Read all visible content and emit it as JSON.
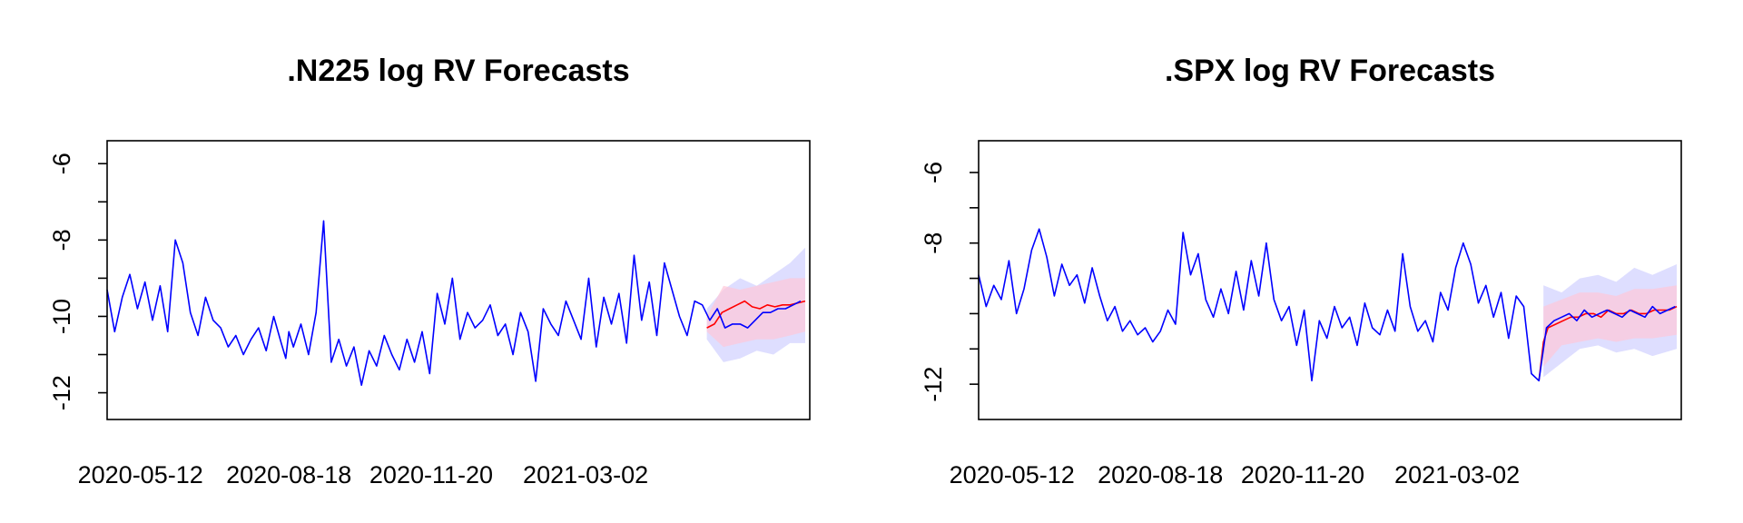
{
  "colors": {
    "actual": "#0000ff",
    "forecast": "#ff0000",
    "band_actual": "#c8c8ff",
    "band_forecast": "#ffc8d8",
    "axis": "#000000"
  },
  "chart_data": [
    {
      "type": "line",
      "title": ".N225 log RV Forecasts",
      "xlabel": "",
      "ylabel": "",
      "xlim": [
        "2020-04-20",
        "2021-07-28"
      ],
      "ylim": [
        -12.7,
        -5.4
      ],
      "yticks": [
        -12,
        -11,
        -10,
        -9,
        -8,
        -7,
        -6
      ],
      "ytick_labels": [
        "-12",
        "",
        "-10",
        "",
        "-8",
        "",
        "-6"
      ],
      "xtick_labels": [
        "2020-05-12",
        "2020-08-18",
        "2020-11-20",
        "2021-03-02"
      ],
      "xtick_dates": [
        "2020-05-12",
        "2020-08-18",
        "2020-11-20",
        "2021-03-02"
      ],
      "grid": false,
      "series": [
        {
          "role": "actual",
          "x": [
            "2020-04-20",
            "2020-04-25",
            "2020-04-30",
            "2020-05-05",
            "2020-05-10",
            "2020-05-15",
            "2020-05-20",
            "2020-05-25",
            "2020-05-30",
            "2020-06-04",
            "2020-06-09",
            "2020-06-14",
            "2020-06-19",
            "2020-06-24",
            "2020-06-29",
            "2020-07-04",
            "2020-07-09",
            "2020-07-14",
            "2020-07-19",
            "2020-07-24",
            "2020-07-29",
            "2020-08-03",
            "2020-08-08",
            "2020-08-13",
            "2020-08-16",
            "2020-08-18",
            "2020-08-21",
            "2020-08-26",
            "2020-08-31",
            "2020-09-05",
            "2020-09-10",
            "2020-09-15",
            "2020-09-20",
            "2020-09-25",
            "2020-09-30",
            "2020-10-05",
            "2020-10-10",
            "2020-10-15",
            "2020-10-20",
            "2020-10-25",
            "2020-10-30",
            "2020-11-04",
            "2020-11-09",
            "2020-11-14",
            "2020-11-19",
            "2020-11-24",
            "2020-11-29",
            "2020-12-04",
            "2020-12-09",
            "2020-12-14",
            "2020-12-19",
            "2020-12-24",
            "2020-12-29",
            "2021-01-03",
            "2021-01-08",
            "2021-01-13",
            "2021-01-18",
            "2021-01-23",
            "2021-01-28",
            "2021-02-02",
            "2021-02-07",
            "2021-02-12",
            "2021-02-17",
            "2021-02-22",
            "2021-02-27",
            "2021-03-04",
            "2021-03-09",
            "2021-03-14",
            "2021-03-19",
            "2021-03-24",
            "2021-03-29",
            "2021-04-03",
            "2021-04-08",
            "2021-04-13",
            "2021-04-18",
            "2021-04-23",
            "2021-04-28",
            "2021-05-03",
            "2021-05-08",
            "2021-05-13",
            "2021-05-18",
            "2021-05-23",
            "2021-05-28",
            "2021-06-02",
            "2021-06-07",
            "2021-06-12",
            "2021-06-17",
            "2021-06-22",
            "2021-06-27",
            "2021-07-02",
            "2021-07-07",
            "2021-07-12",
            "2021-07-17",
            "2021-07-22"
          ],
          "values": [
            -9.3,
            -10.4,
            -9.5,
            -8.9,
            -9.8,
            -9.1,
            -10.1,
            -9.2,
            -10.4,
            -8.0,
            -8.6,
            -9.9,
            -10.5,
            -9.5,
            -10.1,
            -10.3,
            -10.8,
            -10.5,
            -11.0,
            -10.6,
            -10.3,
            -10.9,
            -10.0,
            -10.7,
            -11.1,
            -10.4,
            -10.8,
            -10.2,
            -11.0,
            -9.9,
            -7.5,
            -11.2,
            -10.6,
            -11.3,
            -10.8,
            -11.8,
            -10.9,
            -11.3,
            -10.5,
            -11.0,
            -11.4,
            -10.6,
            -11.2,
            -10.4,
            -11.5,
            -9.4,
            -10.2,
            -9.0,
            -10.6,
            -9.9,
            -10.3,
            -10.1,
            -9.7,
            -10.5,
            -10.2,
            -11.0,
            -9.9,
            -10.4,
            -11.7,
            -9.8,
            -10.2,
            -10.5,
            -9.6,
            -10.1,
            -10.6,
            -9.0,
            -10.8,
            -9.5,
            -10.2,
            -9.4,
            -10.7,
            -8.4,
            -10.1,
            -9.1,
            -10.5,
            -8.6,
            -9.3,
            -10.0,
            -10.5,
            -9.6,
            -9.7,
            -10.1,
            -9.8,
            -10.3,
            -10.2,
            -10.2,
            -10.3,
            -10.1,
            -9.9,
            -9.9,
            -9.8,
            -9.8,
            -9.7,
            -9.6
          ]
        },
        {
          "role": "forecast",
          "x": [
            "2021-05-21",
            "2021-05-26",
            "2021-05-31",
            "2021-06-05",
            "2021-06-10",
            "2021-06-15",
            "2021-06-20",
            "2021-06-25",
            "2021-06-30",
            "2021-07-05",
            "2021-07-10",
            "2021-07-15",
            "2021-07-20",
            "2021-07-25"
          ],
          "values": [
            -10.3,
            -10.2,
            -9.9,
            -9.8,
            -9.7,
            -9.6,
            -9.75,
            -9.8,
            -9.7,
            -9.75,
            -9.7,
            -9.7,
            -9.65,
            -9.6
          ]
        }
      ],
      "bands": [
        {
          "role": "actual",
          "x": [
            "2021-05-21",
            "2021-06-01",
            "2021-06-12",
            "2021-06-23",
            "2021-07-04",
            "2021-07-15",
            "2021-07-25"
          ],
          "lower": [
            -10.6,
            -11.2,
            -11.1,
            -10.9,
            -11.0,
            -10.7,
            -10.7
          ],
          "upper": [
            -9.8,
            -9.3,
            -9.0,
            -9.2,
            -8.9,
            -8.6,
            -8.2
          ]
        },
        {
          "role": "forecast",
          "x": [
            "2021-05-21",
            "2021-06-01",
            "2021-06-12",
            "2021-06-23",
            "2021-07-04",
            "2021-07-15",
            "2021-07-25"
          ],
          "lower": [
            -10.4,
            -10.8,
            -10.7,
            -10.6,
            -10.6,
            -10.5,
            -10.4
          ],
          "upper": [
            -10.0,
            -9.2,
            -9.3,
            -9.2,
            -9.1,
            -9.0,
            -9.0
          ]
        }
      ]
    },
    {
      "type": "line",
      "title": ".SPX log RV Forecasts",
      "xlabel": "",
      "ylabel": "",
      "xlim": [
        "2020-04-20",
        "2021-07-28"
      ],
      "ylim": [
        -13.0,
        -5.1
      ],
      "yticks": [
        -12,
        -11,
        -10,
        -9,
        -8,
        -7,
        -6
      ],
      "ytick_labels": [
        "-12",
        "",
        "",
        "",
        "-8",
        "",
        "-6"
      ],
      "xtick_labels": [
        "2020-05-12",
        "2020-08-18",
        "2020-11-20",
        "2021-03-02"
      ],
      "xtick_dates": [
        "2020-05-12",
        "2020-08-18",
        "2020-11-20",
        "2021-03-02"
      ],
      "grid": false,
      "series": [
        {
          "role": "actual",
          "x": [
            "2020-04-20",
            "2020-04-25",
            "2020-04-30",
            "2020-05-05",
            "2020-05-10",
            "2020-05-15",
            "2020-05-20",
            "2020-05-25",
            "2020-05-30",
            "2020-06-04",
            "2020-06-09",
            "2020-06-14",
            "2020-06-19",
            "2020-06-24",
            "2020-06-29",
            "2020-07-04",
            "2020-07-09",
            "2020-07-14",
            "2020-07-19",
            "2020-07-24",
            "2020-07-29",
            "2020-08-03",
            "2020-08-08",
            "2020-08-13",
            "2020-08-18",
            "2020-08-23",
            "2020-08-28",
            "2020-09-02",
            "2020-09-07",
            "2020-09-12",
            "2020-09-17",
            "2020-09-22",
            "2020-09-27",
            "2020-10-02",
            "2020-10-07",
            "2020-10-12",
            "2020-10-17",
            "2020-10-22",
            "2020-10-27",
            "2020-11-01",
            "2020-11-06",
            "2020-11-11",
            "2020-11-16",
            "2020-11-21",
            "2020-11-26",
            "2020-12-01",
            "2020-12-06",
            "2020-12-11",
            "2020-12-16",
            "2020-12-21",
            "2020-12-26",
            "2020-12-31",
            "2021-01-05",
            "2021-01-10",
            "2021-01-15",
            "2021-01-20",
            "2021-01-25",
            "2021-01-30",
            "2021-02-04",
            "2021-02-09",
            "2021-02-14",
            "2021-02-19",
            "2021-02-24",
            "2021-03-01",
            "2021-03-06",
            "2021-03-11",
            "2021-03-16",
            "2021-03-21",
            "2021-03-26",
            "2021-03-31",
            "2021-04-05",
            "2021-04-10",
            "2021-04-15",
            "2021-04-20",
            "2021-04-25",
            "2021-04-30",
            "2021-05-05",
            "2021-05-10",
            "2021-05-15",
            "2021-05-20",
            "2021-05-25",
            "2021-05-30",
            "2021-06-04",
            "2021-06-09",
            "2021-06-14",
            "2021-06-19",
            "2021-06-24",
            "2021-06-29",
            "2021-07-04",
            "2021-07-09",
            "2021-07-14",
            "2021-07-19",
            "2021-07-24"
          ],
          "values": [
            -8.9,
            -9.8,
            -9.2,
            -9.6,
            -8.5,
            -10.0,
            -9.3,
            -8.2,
            -7.6,
            -8.4,
            -9.5,
            -8.6,
            -9.2,
            -8.9,
            -9.7,
            -8.7,
            -9.5,
            -10.2,
            -9.8,
            -10.5,
            -10.2,
            -10.6,
            -10.4,
            -10.8,
            -10.5,
            -9.9,
            -10.3,
            -7.7,
            -8.9,
            -8.3,
            -9.6,
            -10.1,
            -9.3,
            -10.0,
            -8.8,
            -9.9,
            -8.5,
            -9.5,
            -8.0,
            -9.6,
            -10.2,
            -9.8,
            -10.9,
            -9.9,
            -11.9,
            -10.2,
            -10.7,
            -9.8,
            -10.4,
            -10.1,
            -10.9,
            -9.7,
            -10.4,
            -10.6,
            -9.9,
            -10.5,
            -8.3,
            -9.8,
            -10.5,
            -10.2,
            -10.8,
            -9.4,
            -9.9,
            -8.7,
            -8.0,
            -8.6,
            -9.7,
            -9.2,
            -10.1,
            -9.4,
            -10.7,
            -9.5,
            -9.8,
            -11.7,
            -11.9,
            -10.4,
            -10.2,
            -10.1,
            -10.0,
            -10.2,
            -9.9,
            -10.1,
            -10.0,
            -9.9,
            -10.0,
            -10.1,
            -9.9,
            -10.0,
            -10.1,
            -9.8,
            -10.0,
            -9.9,
            -9.8
          ]
        },
        {
          "role": "forecast",
          "x": [
            "2021-04-25",
            "2021-04-28",
            "2021-05-01",
            "2021-05-06",
            "2021-05-11",
            "2021-05-16",
            "2021-05-21",
            "2021-05-26",
            "2021-05-31",
            "2021-06-05",
            "2021-06-10",
            "2021-06-15",
            "2021-06-20",
            "2021-06-25",
            "2021-06-30",
            "2021-07-05",
            "2021-07-10",
            "2021-07-15",
            "2021-07-20",
            "2021-07-25"
          ],
          "values": [
            -11.9,
            -10.8,
            -10.4,
            -10.3,
            -10.2,
            -10.1,
            -10.1,
            -10.0,
            -10.0,
            -10.1,
            -9.9,
            -10.0,
            -10.0,
            -9.9,
            -10.0,
            -10.0,
            -9.9,
            -9.9,
            -9.9,
            -9.8
          ]
        }
      ],
      "bands": [
        {
          "role": "actual",
          "x": [
            "2021-04-28",
            "2021-05-10",
            "2021-05-22",
            "2021-06-03",
            "2021-06-15",
            "2021-06-27",
            "2021-07-09",
            "2021-07-25"
          ],
          "lower": [
            -11.8,
            -11.4,
            -11.0,
            -10.9,
            -11.1,
            -11.0,
            -11.2,
            -11.0
          ],
          "upper": [
            -9.2,
            -9.4,
            -9.0,
            -8.9,
            -9.1,
            -8.7,
            -8.9,
            -8.6
          ]
        },
        {
          "role": "forecast",
          "x": [
            "2021-04-28",
            "2021-05-10",
            "2021-05-22",
            "2021-06-03",
            "2021-06-15",
            "2021-06-27",
            "2021-07-09",
            "2021-07-25"
          ],
          "lower": [
            -11.5,
            -10.9,
            -10.8,
            -10.7,
            -10.8,
            -10.7,
            -10.7,
            -10.6
          ],
          "upper": [
            -9.8,
            -9.6,
            -9.4,
            -9.4,
            -9.5,
            -9.3,
            -9.3,
            -9.2
          ]
        }
      ]
    }
  ]
}
